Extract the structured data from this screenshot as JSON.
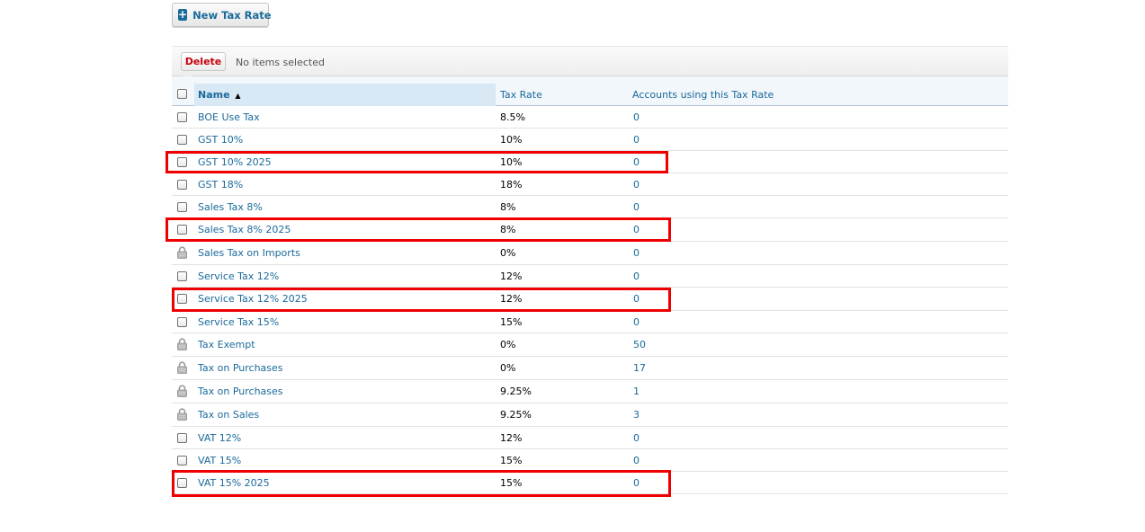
{
  "toolbar": {
    "new_button_label": "New Tax Rate",
    "delete_label": "Delete",
    "selection_status": "No items selected"
  },
  "table": {
    "columns": {
      "name": "Name",
      "rate": "Tax Rate",
      "accounts": "Accounts using this Tax Rate"
    },
    "sort_indicator": "▲",
    "rows": [
      {
        "name": "BOE Use Tax",
        "rate": "8.5%",
        "accounts": "0",
        "locked": false
      },
      {
        "name": "GST 10%",
        "rate": "10%",
        "accounts": "0",
        "locked": false
      },
      {
        "name": "GST 10% 2025",
        "rate": "10%",
        "accounts": "0",
        "locked": false
      },
      {
        "name": "GST 18%",
        "rate": "18%",
        "accounts": "0",
        "locked": false
      },
      {
        "name": "Sales Tax 8%",
        "rate": "8%",
        "accounts": "0",
        "locked": false
      },
      {
        "name": "Sales Tax 8% 2025",
        "rate": "8%",
        "accounts": "0",
        "locked": false
      },
      {
        "name": "Sales Tax on Imports",
        "rate": "0%",
        "accounts": "0",
        "locked": true
      },
      {
        "name": "Service Tax 12%",
        "rate": "12%",
        "accounts": "0",
        "locked": false
      },
      {
        "name": "Service Tax 12% 2025",
        "rate": "12%",
        "accounts": "0",
        "locked": false
      },
      {
        "name": "Service Tax 15%",
        "rate": "15%",
        "accounts": "0",
        "locked": false
      },
      {
        "name": "Tax Exempt",
        "rate": "0%",
        "accounts": "50",
        "locked": true
      },
      {
        "name": "Tax on Purchases",
        "rate": "0%",
        "accounts": "17",
        "locked": true
      },
      {
        "name": "Tax on Purchases",
        "rate": "9.25%",
        "accounts": "1",
        "locked": true
      },
      {
        "name": "Tax on Sales",
        "rate": "9.25%",
        "accounts": "3",
        "locked": true
      },
      {
        "name": "VAT 12%",
        "rate": "12%",
        "accounts": "0",
        "locked": false
      },
      {
        "name": "VAT 15%",
        "rate": "15%",
        "accounts": "0",
        "locked": false
      },
      {
        "name": "VAT 15% 2025",
        "rate": "15%",
        "accounts": "0",
        "locked": false
      }
    ]
  },
  "highlight_color": "#ee0000",
  "link_color": "#1a6a9a"
}
